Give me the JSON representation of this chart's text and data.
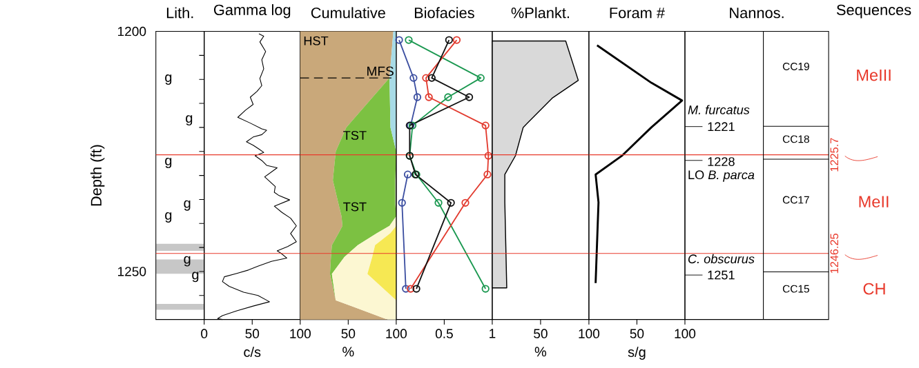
{
  "chart_data": [
    {
      "type": "other",
      "title": "Lith.",
      "annotations": [
        "g",
        "g",
        "g",
        "g",
        "g",
        "g",
        "g"
      ]
    },
    {
      "type": "line",
      "title": "Gamma log",
      "xlabel": "c/s",
      "ylabel": "Depth (ft)",
      "orientation": "horizontal",
      "xlim": [
        0,
        100
      ],
      "xticks": [
        0,
        50,
        100
      ],
      "ylim": [
        1260,
        1200
      ],
      "yticks": [
        1200,
        {
          "value": 1205,
          "label": null
        },
        {
          "value": 1210,
          "label": null
        },
        {
          "value": 1215,
          "label": null
        },
        {
          "value": 1220,
          "label": null
        },
        {
          "value": 1225,
          "label": null
        },
        {
          "value": 1230,
          "label": null
        },
        {
          "value": 1235,
          "label": null
        },
        {
          "value": 1240,
          "label": null
        },
        {
          "value": 1245,
          "label": null
        },
        1250,
        {
          "value": 1255,
          "label": null
        }
      ],
      "x": [
        1200.5,
        1201,
        1202.2,
        1204.2,
        1205.9,
        1207.8,
        1209.8,
        1211.3,
        1212.5,
        1213.7,
        1215.2,
        1216.4,
        1217.9,
        1219.1,
        1220.3,
        1220.6,
        1221.5,
        1222,
        1223,
        1223.7,
        1224.5,
        1225.2,
        1225.9,
        1226.9,
        1227.9,
        1228.4,
        1230.3,
        1232.3,
        1233.5,
        1234.2,
        1235.1,
        1236.4,
        1237.7,
        1238.9,
        1240.5,
        1242.1,
        1243.8,
        1244.8,
        1245.7,
        1246.2,
        1247.2,
        1247.9,
        1248.9,
        1249.7,
        1250.4,
        1251.1,
        1252.1,
        1253.1,
        1254.3,
        1255,
        1256.3,
        1257.2,
        1258.2,
        1259.2,
        1259.8,
        1260
      ],
      "series": [
        {
          "color": "#000000",
          "values": [
            57,
            62,
            58,
            64,
            60,
            62,
            58,
            60,
            55,
            48,
            51,
            43,
            35,
            48,
            60,
            65,
            60,
            51,
            44,
            51,
            57,
            62,
            53,
            60,
            65,
            76,
            63,
            74,
            73,
            78,
            89,
            73,
            81,
            90,
            96,
            90,
            96,
            87,
            76,
            80,
            86,
            70,
            56,
            46,
            34,
            21,
            19,
            26,
            41,
            56,
            68,
            51,
            34,
            19,
            14,
            19
          ]
        }
      ],
      "ref_lines": [
        {
          "axis": "y",
          "value": 1225.7,
          "color": "#e8392b"
        },
        {
          "axis": "y",
          "value": 1246.25,
          "color": "#e8392b"
        }
      ]
    },
    {
      "type": "area",
      "title": "Cumulative",
      "xlabel": "%",
      "orientation": "horizontal",
      "stacked": true,
      "xlim": [
        0,
        100
      ],
      "xticks": [
        50,
        100
      ],
      "ylim": [
        1260,
        1200
      ],
      "tick_labels": "x",
      "x": [
        1200,
        1209.7,
        1220,
        1225,
        1231,
        1236,
        1238.5,
        1240.5,
        1242,
        1244.5,
        1247,
        1250.5,
        1256,
        1260
      ],
      "series": [
        {
          "color": "#c9a87a",
          "values": [
            97,
            93,
            48,
            37,
            34,
            40,
            43,
            44,
            40,
            33,
            32,
            31,
            37,
            91
          ]
        },
        {
          "color": "#7cc142",
          "values": [
            0,
            0,
            46,
            63,
            65,
            59,
            57,
            49,
            40,
            27,
            14,
            2,
            0,
            0
          ]
        },
        {
          "color": "#fcf7d2",
          "values": [
            0,
            0,
            0,
            0,
            0,
            0,
            0,
            7,
            14,
            18,
            29,
            37,
            63,
            9
          ]
        },
        {
          "color": "#f6e853",
          "values": [
            0,
            0,
            0,
            0,
            0,
            0,
            0,
            0,
            6,
            22,
            25,
            30,
            0,
            0
          ]
        },
        {
          "color": "#a8dbe6",
          "values": [
            3,
            7,
            6,
            0,
            0,
            0,
            0,
            0,
            0,
            0,
            0,
            0,
            0,
            0
          ]
        }
      ],
      "ref_lines": [
        {
          "axis": "y",
          "value": 1209.7,
          "label": "MFS",
          "color": "#000000",
          "line_style": "dashed"
        },
        {
          "axis": "y",
          "value": 1225.7,
          "color": "#e8392b"
        },
        {
          "axis": "y",
          "value": 1246.25,
          "color": "#e8392b"
        }
      ],
      "annotations": [
        "HST",
        "TST",
        "TST"
      ]
    },
    {
      "type": "line",
      "title": "Biofacies",
      "orientation": "horizontal",
      "marker": "circle",
      "xlim": [
        0,
        1
      ],
      "xticks": [
        0.5,
        1
      ],
      "ylim": [
        1260,
        1200
      ],
      "tick_labels": "x",
      "x": [
        1201.8,
        1209.7,
        1213.7,
        1219.6,
        1225.9,
        1229.8,
        1235.7,
        1253.6
      ],
      "series": [
        {
          "color": "#3b4ea0",
          "values": [
            0.03,
            0.18,
            0.22,
            0.15,
            null,
            0.12,
            0.06,
            0.1
          ]
        },
        {
          "color": "#1a9850",
          "values": [
            0.13,
            0.88,
            0.54,
            0.17,
            0.14,
            0.21,
            0.44,
            0.93
          ]
        },
        {
          "color": "#e23a2e",
          "values": [
            0.63,
            0.31,
            0.34,
            0.93,
            0.96,
            0.95,
            0.72,
            0.15
          ]
        },
        {
          "color": "#111111",
          "values": [
            0.55,
            0.37,
            0.76,
            0.14,
            0.14,
            0.2,
            0.57,
            0.21
          ]
        }
      ],
      "ref_lines": [
        {
          "axis": "y",
          "value": 1225.7,
          "color": "#e8392b"
        },
        {
          "axis": "y",
          "value": 1246.25,
          "color": "#e8392b"
        }
      ]
    },
    {
      "type": "area",
      "title": "%Plankt.",
      "xlabel": "%",
      "orientation": "horizontal",
      "xlim": [
        0,
        100
      ],
      "xticks": [
        50,
        100
      ],
      "ylim": [
        1260,
        1200
      ],
      "tick_labels": "x",
      "x": [
        1202,
        1210.2,
        1213.9,
        1220,
        1225.9,
        1229.8,
        1235.6,
        1253.4
      ],
      "series": [
        {
          "color": "#d9d9d9",
          "values": [
            76,
            89,
            62,
            32,
            24,
            13,
            13,
            15
          ]
        }
      ],
      "ref_lines": [
        {
          "axis": "y",
          "value": 1225.7,
          "color": "#e8392b"
        },
        {
          "axis": "y",
          "value": 1246.25,
          "color": "#e8392b"
        }
      ]
    },
    {
      "type": "line",
      "title": "Foram #",
      "xlabel": "s/g",
      "orientation": "horizontal",
      "xlim": [
        0,
        100
      ],
      "xticks": [
        50,
        100
      ],
      "ylim": [
        1260,
        1200
      ],
      "tick_labels": "x",
      "x": [
        1202.9,
        1210.7,
        1214.4,
        1220,
        1225.8,
        1229.8,
        1235.6,
        1252.4
      ],
      "series": [
        {
          "color": "#000000",
          "values": [
            8.5,
            65,
            97,
            65,
            35,
            7,
            10,
            7
          ]
        }
      ],
      "ref_lines": [
        {
          "axis": "y",
          "value": 1225.7,
          "label": "1225.7",
          "color": "#e8392b"
        },
        {
          "axis": "y",
          "value": 1246.25,
          "label": "1246.25",
          "color": "#e8392b"
        }
      ]
    },
    {
      "type": "other",
      "title": "Nannos.",
      "annotations": [
        "*M. furcatus*",
        "1221",
        "1228",
        "LO *B. parca*",
        "*C. obscurus*",
        "1251",
        "CC19",
        "CC18",
        "CC17",
        "CC15"
      ]
    },
    {
      "type": "other",
      "title": "Sequences",
      "annotations": [
        "MeIII",
        "MeII",
        "CH"
      ]
    }
  ]
}
